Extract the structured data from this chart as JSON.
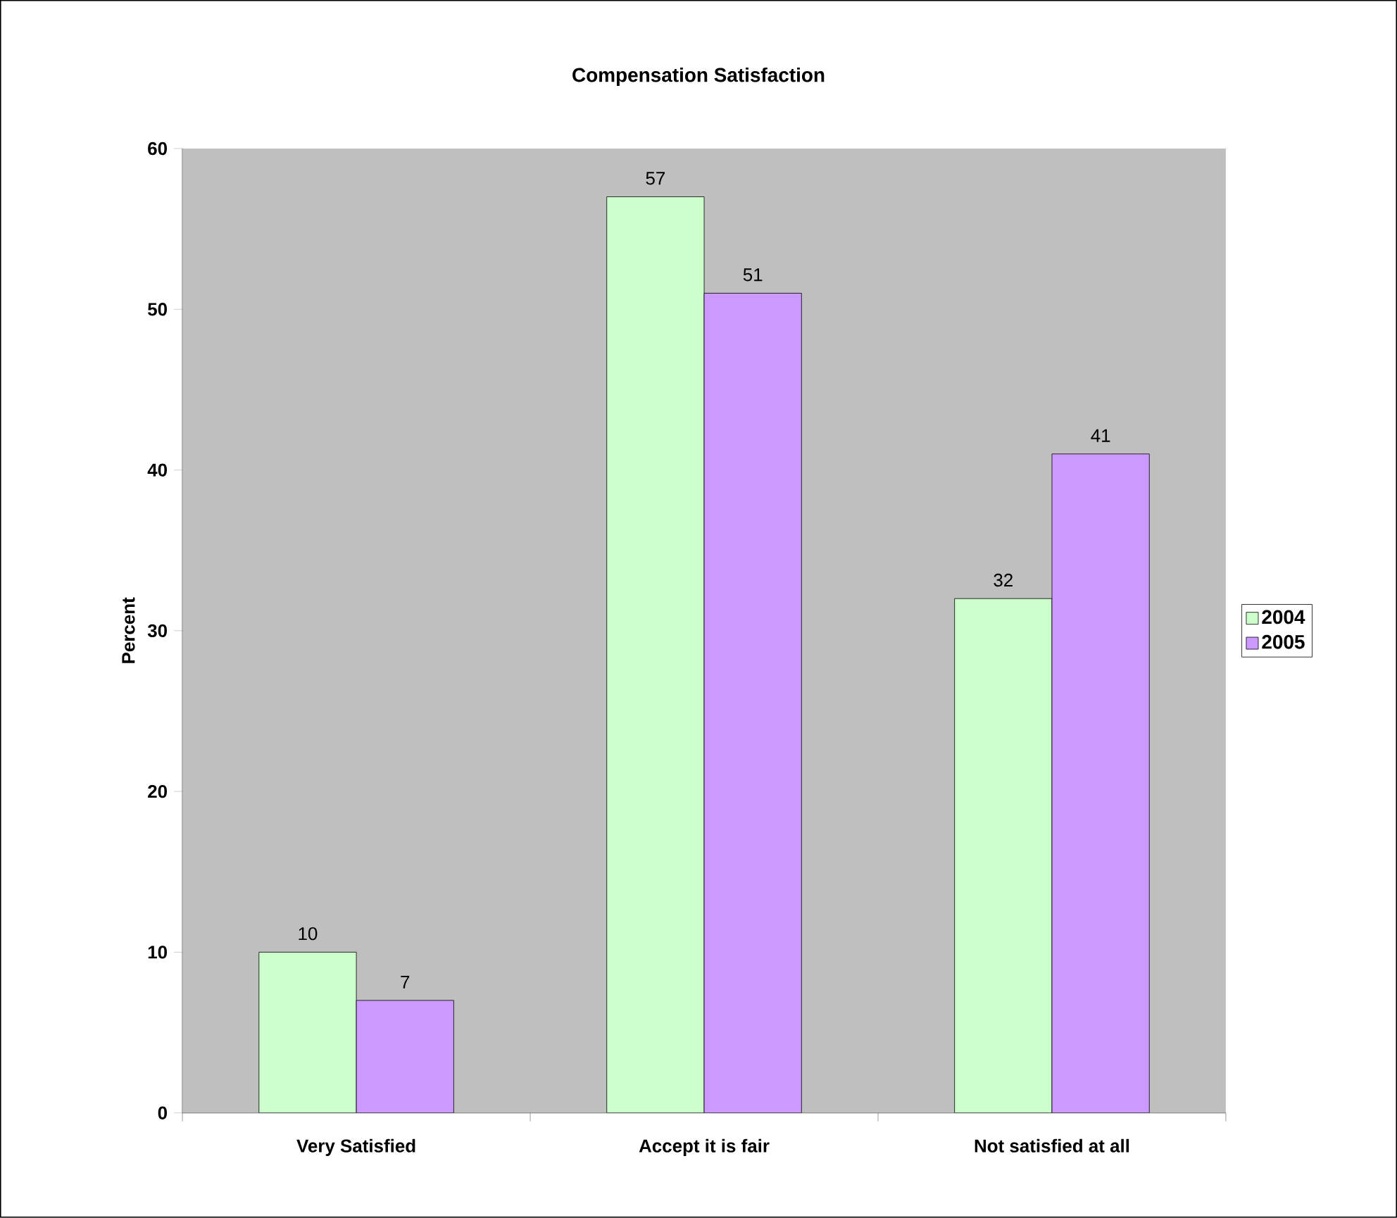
{
  "chart_data": {
    "type": "bar",
    "title": "Compensation Satisfaction",
    "ylabel": "Percent",
    "categories": [
      "Very Satisfied",
      "Accept it is fair",
      "Not satisfied at all"
    ],
    "series": [
      {
        "name": "2004",
        "color": "#ccffcc",
        "values": [
          10,
          57,
          32
        ]
      },
      {
        "name": "2005",
        "color": "#cc99ff",
        "values": [
          7,
          51,
          41
        ]
      }
    ],
    "ylim": [
      0,
      60
    ],
    "yticks": [
      0,
      10,
      20,
      30,
      40,
      50,
      60
    ],
    "data_labels": true,
    "legend": "right",
    "grid": false
  }
}
